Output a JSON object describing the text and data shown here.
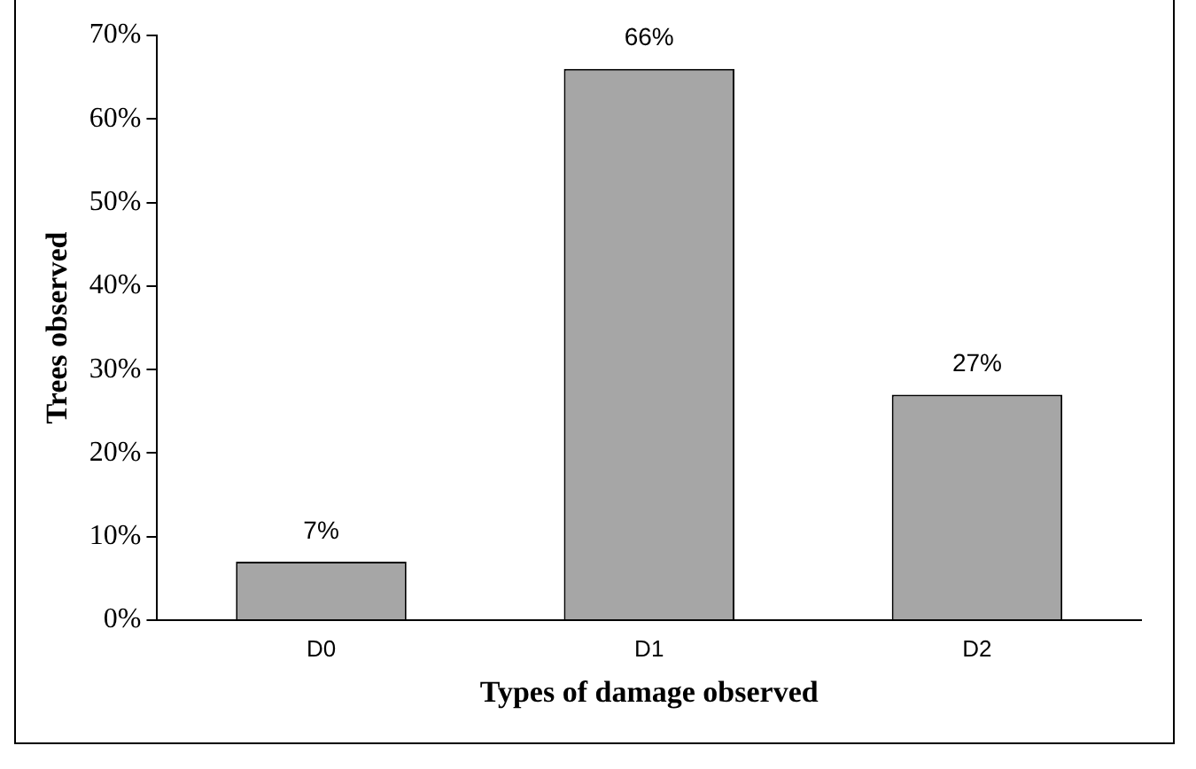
{
  "chart_data": {
    "type": "bar",
    "xlabel": "Types of damage observed",
    "ylabel": "Trees observed",
    "categories": [
      "D0",
      "D1",
      "D2"
    ],
    "values": [
      7,
      66,
      27
    ],
    "color": "#a6a6a6",
    "value_labels": [
      "7%",
      "66%",
      "27%"
    ],
    "ylim": [
      0,
      70
    ],
    "yticks": [
      {
        "value": 0,
        "label": "0%"
      },
      {
        "value": 10,
        "label": "10%"
      },
      {
        "value": 20,
        "label": "20%"
      },
      {
        "value": 30,
        "label": "30%"
      },
      {
        "value": 40,
        "label": "40%"
      },
      {
        "value": 50,
        "label": "50%"
      },
      {
        "value": 60,
        "label": "60%"
      },
      {
        "value": 70,
        "label": "70%"
      }
    ],
    "grid": false,
    "legend": false
  }
}
